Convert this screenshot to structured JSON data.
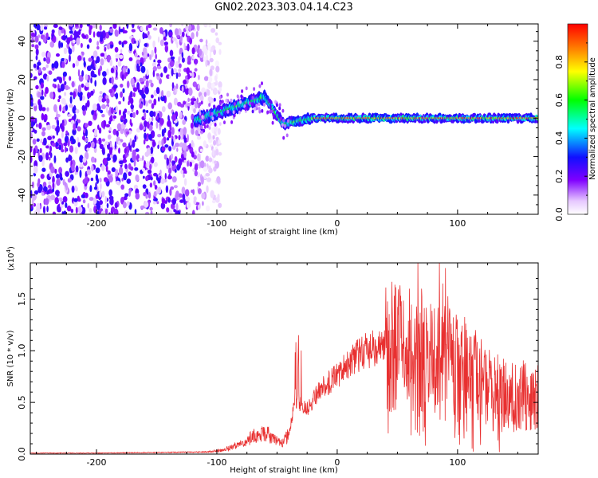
{
  "title": "GN02.2023.303.04.14.C23",
  "chart_data": [
    {
      "type": "heatmap",
      "xlabel": "Height of straight line (km)",
      "ylabel": "Frequency (Hz)",
      "xlim": [
        -255,
        167
      ],
      "ylim": [
        -50,
        49
      ],
      "x_ticks": [
        -200,
        -100,
        0,
        100
      ],
      "y_ticks": [
        -40,
        -20,
        0,
        20,
        40
      ],
      "colorbar": {
        "label": "Normalized spectral amplitude",
        "range": [
          0,
          1
        ],
        "ticks": [
          "0.0",
          "0.2",
          "0.4",
          "0.6",
          "0.8"
        ],
        "colormap": "rainbow (white-lavender at 0, violet, blue, cyan, green, yellow, red at 1)"
      },
      "features": [
        {
          "name": "noise region",
          "x_range": [
            -255,
            -105
          ],
          "frequency_range": [
            -50,
            49
          ],
          "amplitude": "low (0.05-0.25)"
        },
        {
          "name": "rising trace",
          "x_range": [
            -118,
            -60
          ],
          "frequency_start": -1,
          "frequency_end": 11,
          "amplitude": "0.3-0.7"
        },
        {
          "name": "drop",
          "x_range": [
            -60,
            -45
          ],
          "frequency_start": 11,
          "frequency_end": -3,
          "amplitude": "0.3-0.6"
        },
        {
          "name": "steady trace",
          "x_range": [
            -45,
            167
          ],
          "frequency": 0,
          "amplitude": "0.6-1.0"
        }
      ]
    },
    {
      "type": "line",
      "xlabel": "Height of straight line (km)",
      "ylabel": "SNR (10 * v/v)",
      "yscale_label": "(x10",
      "yscale_exponent": "4",
      "xlim": [
        -255,
        167
      ],
      "ylim": [
        0,
        1.85
      ],
      "x_ticks": [
        -200,
        -100,
        0,
        100
      ],
      "y_ticks": [
        "0.0",
        "0.5",
        "1.0",
        "1.5"
      ],
      "series_color": "#e83030",
      "envelope": {
        "x": [
          -255,
          -200,
          -150,
          -110,
          -95,
          -80,
          -70,
          -60,
          -52,
          -45,
          -40,
          -35,
          -30,
          -25,
          -20,
          -15,
          -10,
          -5,
          0,
          10,
          20,
          30,
          40,
          50,
          60,
          70,
          80,
          90,
          100,
          110,
          120,
          130,
          140,
          150,
          160,
          167
        ],
        "y": [
          0.01,
          0.01,
          0.015,
          0.02,
          0.04,
          0.1,
          0.18,
          0.22,
          0.15,
          0.12,
          0.2,
          0.55,
          0.5,
          0.45,
          0.55,
          0.62,
          0.68,
          0.72,
          0.78,
          0.9,
          1.0,
          1.05,
          1.07,
          1.04,
          0.98,
          0.95,
          0.93,
          0.9,
          0.85,
          0.78,
          0.7,
          0.62,
          0.58,
          0.55,
          0.6,
          0.62
        ]
      },
      "peaks": [
        {
          "x": -32,
          "y": 1.15
        },
        {
          "x": 60,
          "y": 1.6
        },
        {
          "x": 67,
          "y": 1.85
        },
        {
          "x": 70,
          "y": 1.6
        },
        {
          "x": 85,
          "y": 1.85
        },
        {
          "x": 90,
          "y": 1.8
        },
        {
          "x": 99,
          "y": 1.35
        },
        {
          "x": 115,
          "y": 1.2
        }
      ]
    }
  ]
}
